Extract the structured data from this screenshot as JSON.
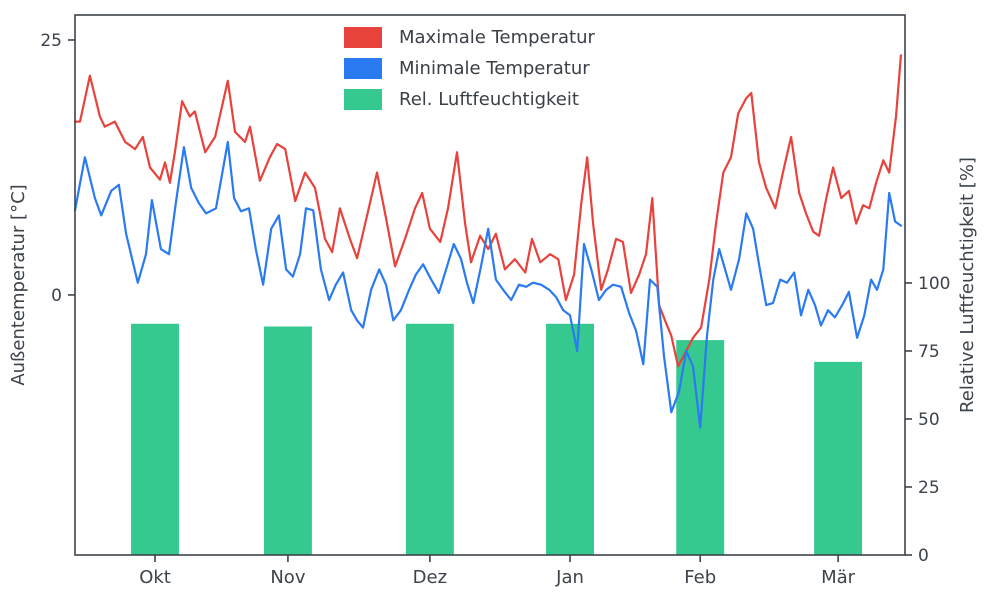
{
  "chart_data": {
    "type": "line+bar",
    "title": "",
    "ylabel_left": "Außentemperatur [°C]",
    "ylabel_right": "Relative Luftfeuchtigkeit [%]",
    "left_ticks": [
      0,
      25
    ],
    "right_ticks": [
      0,
      25,
      50,
      75,
      100
    ],
    "left_ylim": [
      -25.5,
      27.45
    ],
    "right_ylim": [
      0,
      198.5
    ],
    "x_domain": [
      0,
      183.6
    ],
    "month_ticks": [
      {
        "label": "Okt",
        "day": 17.7
      },
      {
        "label": "Nov",
        "day": 47.1
      },
      {
        "label": "Dez",
        "day": 78.5
      },
      {
        "label": "Jan",
        "day": 109.5
      },
      {
        "label": "Feb",
        "day": 138.3
      },
      {
        "label": "Mär",
        "day": 168.8
      }
    ],
    "series": [
      {
        "name": "Maximale Temperatur",
        "type": "line",
        "axis": "left",
        "color": "#e8423c",
        "x": [
          0,
          1.1,
          3.3,
          5.5,
          6.6,
          8.8,
          11.1,
          13.3,
          15.0,
          16.6,
          18.8,
          19.9,
          21.0,
          22.1,
          23.7,
          25.4,
          26.5,
          28.8,
          31.0,
          33.8,
          35.4,
          37.6,
          38.7,
          40.9,
          43.1,
          44.7,
          46.5,
          48.7,
          50.9,
          53.1,
          55.3,
          56.9,
          58.6,
          60.8,
          62.4,
          64.2,
          66.8,
          68.6,
          70.8,
          73.0,
          75.2,
          76.8,
          78.5,
          80.8,
          82.5,
          84.5,
          86.3,
          87.6,
          89.6,
          91.4,
          93.1,
          95.1,
          97.3,
          99.6,
          101.1,
          102.9,
          105.1,
          106.9,
          108.6,
          110.4,
          112.0,
          113.3,
          114.6,
          116.4,
          117.9,
          119.7,
          121.2,
          123.0,
          124.8,
          126.3,
          127.7,
          129.2,
          130.5,
          131.9,
          133.4,
          135.2,
          136.7,
          138.5,
          140.3,
          141.8,
          143.4,
          145.1,
          146.7,
          148.5,
          149.6,
          151.3,
          152.9,
          154.9,
          156.6,
          158.4,
          160.2,
          161.7,
          163.3,
          164.6,
          166.2,
          167.7,
          169.5,
          171.2,
          172.8,
          174.3,
          175.7,
          177.2,
          178.8,
          180.1,
          181.6,
          182.7
        ],
        "values": [
          17,
          17,
          21.5,
          17.5,
          16.5,
          17,
          15,
          14.3,
          15.5,
          12.5,
          11.3,
          13,
          11,
          14,
          19,
          17.5,
          18,
          14,
          15.5,
          21,
          16,
          15,
          16.5,
          11.2,
          13.5,
          14.8,
          14.3,
          9.2,
          12,
          10.5,
          5.5,
          4.2,
          8.5,
          5.5,
          3.6,
          7,
          12,
          8,
          2.8,
          5.5,
          8.5,
          10,
          6.5,
          5.2,
          8.5,
          14,
          7,
          3.2,
          5.8,
          4.5,
          6,
          2.5,
          3.5,
          2.2,
          5.5,
          3.2,
          4,
          3.5,
          -0.5,
          2,
          9,
          13.5,
          7,
          0.5,
          2.5,
          5.5,
          5.2,
          0.2,
          2,
          4,
          9.5,
          -1,
          -2.5,
          -4,
          -7,
          -5.5,
          -4.2,
          -3.2,
          1.5,
          7,
          12,
          13.5,
          17.8,
          19.3,
          19.8,
          13,
          10.5,
          8.5,
          12,
          15.5,
          10,
          8,
          6.2,
          5.8,
          9.5,
          12.5,
          9.5,
          10.2,
          7,
          8.8,
          8.5,
          11,
          13.2,
          12,
          17.5,
          23.5
        ]
      },
      {
        "name": "Minimale Temperatur",
        "type": "line",
        "axis": "left",
        "color": "#2a7af2",
        "x": [
          0,
          2.2,
          4.4,
          5.8,
          8.0,
          9.7,
          11.3,
          13.9,
          15.7,
          17.0,
          19.0,
          20.8,
          22.3,
          24.1,
          25.7,
          27.4,
          29.0,
          31.2,
          33.8,
          35.2,
          36.7,
          38.5,
          40.0,
          41.6,
          43.4,
          45.1,
          46.7,
          48.2,
          49.8,
          51.1,
          52.7,
          54.4,
          56.2,
          57.7,
          59.3,
          61.1,
          62.4,
          63.7,
          65.5,
          67.3,
          68.8,
          70.4,
          72.1,
          73.9,
          75.4,
          77.0,
          78.8,
          80.5,
          82.1,
          83.8,
          85.4,
          86.7,
          88.1,
          89.8,
          91.4,
          93.1,
          94.7,
          96.5,
          98.2,
          99.8,
          101.3,
          103.1,
          104.9,
          106.4,
          108.0,
          109.5,
          111.1,
          112.6,
          114.2,
          115.9,
          117.5,
          119.0,
          120.8,
          122.6,
          124.1,
          125.7,
          127.2,
          128.8,
          130.3,
          131.9,
          133.6,
          135.2,
          136.7,
          138.3,
          139.8,
          141.2,
          142.5,
          143.8,
          145.1,
          146.9,
          148.5,
          150.0,
          151.3,
          152.9,
          154.4,
          156.0,
          157.5,
          159.1,
          160.6,
          162.2,
          163.7,
          165.0,
          166.6,
          168.1,
          169.7,
          171.2,
          173.0,
          174.6,
          176.1,
          177.4,
          178.8,
          180.1,
          181.4,
          182.7
        ],
        "values": [
          8.3,
          13.5,
          9.5,
          7.8,
          10.2,
          10.8,
          6,
          1.2,
          4,
          9.3,
          4.5,
          4,
          9,
          14.5,
          10.5,
          9,
          8,
          8.5,
          15,
          9.5,
          8.2,
          8.5,
          4.5,
          1,
          6.5,
          7.8,
          2.5,
          1.8,
          4,
          8.5,
          8.3,
          2.5,
          -0.5,
          1,
          2.2,
          -1.5,
          -2.5,
          -3.2,
          0.5,
          2.5,
          1,
          -2.5,
          -1.5,
          0.5,
          2,
          3,
          1.5,
          0.2,
          2.5,
          5,
          3.5,
          1.2,
          -0.8,
          2.8,
          6.5,
          1.5,
          0.5,
          -0.5,
          1,
          0.8,
          1.2,
          1,
          0.5,
          -0.2,
          -1.5,
          -2,
          -5.5,
          5,
          2.5,
          -0.5,
          0.5,
          1,
          0.8,
          -1.8,
          -3.5,
          -6.8,
          1.5,
          0.8,
          -6,
          -11.5,
          -9.5,
          -5.5,
          -7,
          -13,
          -4,
          1.5,
          4.5,
          2.5,
          0.5,
          3.5,
          8,
          6.5,
          3,
          -1,
          -0.8,
          1.5,
          1.2,
          2.2,
          -2,
          0.5,
          -1,
          -3,
          -1.5,
          -2.2,
          -1,
          0.3,
          -4.2,
          -2,
          1.5,
          0.5,
          2.5,
          10,
          7.2,
          6.8
        ]
      },
      {
        "name": "Rel. Luftfeuchtigkeit",
        "type": "bar",
        "axis": "right",
        "color": "#36c98f",
        "categories": [
          "Okt",
          "Nov",
          "Dez",
          "Jan",
          "Feb",
          "Mär"
        ],
        "center_days": [
          17.7,
          47.1,
          78.5,
          109.5,
          138.3,
          168.8
        ],
        "bar_width_days": 10.6,
        "values": [
          85,
          84,
          85,
          85,
          79,
          71
        ]
      }
    ]
  }
}
